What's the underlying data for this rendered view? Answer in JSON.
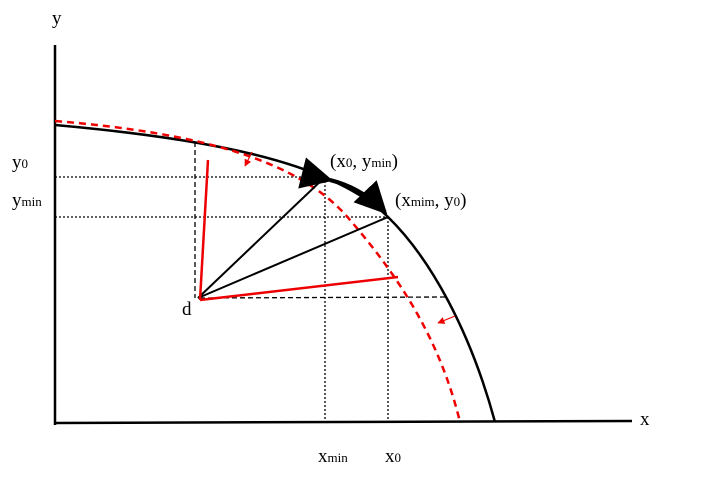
{
  "axes": {
    "x": "x",
    "y": "y"
  },
  "labels": {
    "y0": [
      "y",
      "0"
    ],
    "ymin": [
      "y",
      "min"
    ],
    "point_a": [
      "(x",
      "0",
      ", y",
      "min",
      ")"
    ],
    "point_b": [
      "(x",
      "mim",
      ", y",
      "0",
      ")"
    ],
    "d": "d",
    "xmin": [
      "x",
      "min"
    ],
    "x0": [
      "x",
      "0"
    ]
  }
}
